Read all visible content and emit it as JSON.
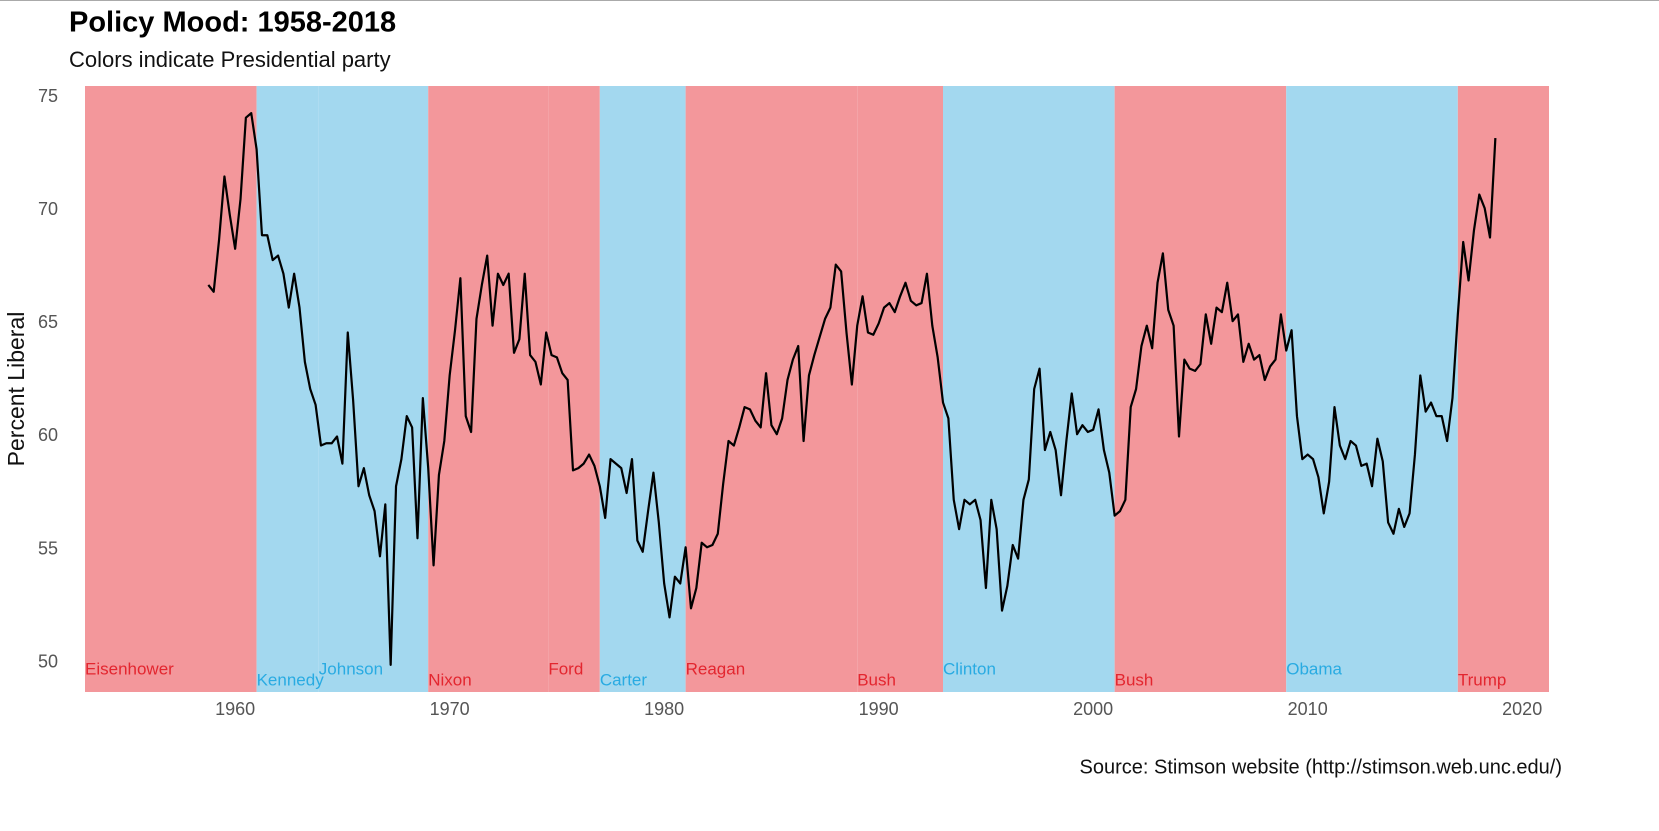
{
  "chart_data": {
    "type": "line",
    "title": "Policy Mood: 1958-2018",
    "subtitle": "Colors indicate Presidential party",
    "y_label": "Percent Liberal",
    "source": "Source: Stimson website (http://stimson.web.unc.edu/)",
    "color": "#000000",
    "xlim": [
      1953,
      2021.25
    ],
    "xticks": [
      1960,
      1970,
      1980,
      1990,
      2000,
      2010,
      2020
    ],
    "ylim": [
      48.7,
      75.5
    ],
    "yticks": [
      50,
      55,
      60,
      65,
      70,
      75
    ],
    "bands": [
      {
        "name": "Eisenhower",
        "start": 1953,
        "end": 1961,
        "color": "#f3979b",
        "label_color": "#e3262f"
      },
      {
        "name": "Kennedy",
        "start": 1961,
        "end": 1963.9,
        "color": "#a3d8ef",
        "label_color": "#29abe2"
      },
      {
        "name": "Johnson",
        "start": 1963.9,
        "end": 1969,
        "color": "#a3d8ef",
        "label_color": "#29abe2"
      },
      {
        "name": "Nixon",
        "start": 1969,
        "end": 1974.6,
        "color": "#f3979b",
        "label_color": "#e3262f"
      },
      {
        "name": "Ford",
        "start": 1974.6,
        "end": 1977,
        "color": "#f3979b",
        "label_color": "#e3262f"
      },
      {
        "name": "Carter",
        "start": 1977,
        "end": 1981,
        "color": "#a3d8ef",
        "label_color": "#29abe2"
      },
      {
        "name": "Reagan",
        "start": 1981,
        "end": 1989,
        "color": "#f3979b",
        "label_color": "#e3262f"
      },
      {
        "name": "Bush",
        "start": 1989,
        "end": 1993,
        "color": "#f3979b",
        "label_color": "#e3262f"
      },
      {
        "name": "Clinton",
        "start": 1993,
        "end": 2001,
        "color": "#a3d8ef",
        "label_color": "#29abe2"
      },
      {
        "name": "Bush",
        "start": 2001,
        "end": 2009,
        "color": "#f3979b",
        "label_color": "#e3262f"
      },
      {
        "name": "Obama",
        "start": 2009,
        "end": 2017,
        "color": "#a3d8ef",
        "label_color": "#29abe2"
      },
      {
        "name": "Trump",
        "start": 2017,
        "end": 2021.25,
        "color": "#f3979b",
        "label_color": "#e3262f"
      }
    ],
    "x": [
      1958.75,
      1959,
      1959.25,
      1959.5,
      1959.75,
      1960,
      1960.25,
      1960.5,
      1960.75,
      1961,
      1961.25,
      1961.5,
      1961.75,
      1962,
      1962.25,
      1962.5,
      1962.75,
      1963,
      1963.25,
      1963.5,
      1963.75,
      1964,
      1964.25,
      1964.5,
      1964.75,
      1965,
      1965.25,
      1965.5,
      1965.75,
      1966,
      1966.25,
      1966.5,
      1966.75,
      1967,
      1967.25,
      1967.5,
      1967.75,
      1968,
      1968.25,
      1968.5,
      1968.75,
      1969,
      1969.25,
      1969.5,
      1969.75,
      1970,
      1970.25,
      1970.5,
      1970.75,
      1971,
      1971.25,
      1971.5,
      1971.75,
      1972,
      1972.25,
      1972.5,
      1972.75,
      1973,
      1973.25,
      1973.5,
      1973.75,
      1974,
      1974.25,
      1974.5,
      1974.75,
      1975,
      1975.25,
      1975.5,
      1975.75,
      1976,
      1976.25,
      1976.5,
      1976.75,
      1977,
      1977.25,
      1977.5,
      1977.75,
      1978,
      1978.25,
      1978.5,
      1978.75,
      1979,
      1979.25,
      1979.5,
      1979.75,
      1980,
      1980.25,
      1980.5,
      1980.75,
      1981,
      1981.25,
      1981.5,
      1981.75,
      1982,
      1982.25,
      1982.5,
      1982.75,
      1983,
      1983.25,
      1983.5,
      1983.75,
      1984,
      1984.25,
      1984.5,
      1984.75,
      1985,
      1985.25,
      1985.5,
      1985.75,
      1986,
      1986.25,
      1986.5,
      1986.75,
      1987,
      1987.25,
      1987.5,
      1987.75,
      1988,
      1988.25,
      1988.5,
      1988.75,
      1989,
      1989.25,
      1989.5,
      1989.75,
      1990,
      1990.25,
      1990.5,
      1990.75,
      1991,
      1991.25,
      1991.5,
      1991.75,
      1992,
      1992.25,
      1992.5,
      1992.75,
      1993,
      1993.25,
      1993.5,
      1993.75,
      1994,
      1994.25,
      1994.5,
      1994.75,
      1995,
      1995.25,
      1995.5,
      1995.75,
      1996,
      1996.25,
      1996.5,
      1996.75,
      1997,
      1997.25,
      1997.5,
      1997.75,
      1998,
      1998.25,
      1998.5,
      1998.75,
      1999,
      1999.25,
      1999.5,
      1999.75,
      2000,
      2000.25,
      2000.5,
      2000.75,
      2001,
      2001.25,
      2001.5,
      2001.75,
      2002,
      2002.25,
      2002.5,
      2002.75,
      2003,
      2003.25,
      2003.5,
      2003.75,
      2004,
      2004.25,
      2004.5,
      2004.75,
      2005,
      2005.25,
      2005.5,
      2005.75,
      2006,
      2006.25,
      2006.5,
      2006.75,
      2007,
      2007.25,
      2007.5,
      2007.75,
      2008,
      2008.25,
      2008.5,
      2008.75,
      2009,
      2009.25,
      2009.5,
      2009.75,
      2010,
      2010.25,
      2010.5,
      2010.75,
      2011,
      2011.25,
      2011.5,
      2011.75,
      2012,
      2012.25,
      2012.5,
      2012.75,
      2013,
      2013.25,
      2013.5,
      2013.75,
      2014,
      2014.25,
      2014.5,
      2014.75,
      2015,
      2015.25,
      2015.5,
      2015.75,
      2016,
      2016.25,
      2016.5,
      2016.75,
      2017,
      2017.25,
      2017.5,
      2017.75,
      2018,
      2018.25,
      2018.5,
      2018.75
    ],
    "values": [
      66.7,
      66.4,
      68.7,
      71.5,
      69.8,
      68.3,
      70.5,
      74.1,
      74.3,
      72.7,
      68.9,
      68.9,
      67.8,
      68.0,
      67.2,
      65.7,
      67.2,
      65.7,
      63.3,
      62.1,
      61.4,
      59.6,
      59.7,
      59.7,
      60.0,
      58.8,
      64.6,
      61.6,
      57.8,
      58.6,
      57.4,
      56.7,
      54.7,
      57.0,
      49.9,
      57.8,
      59.0,
      60.9,
      60.4,
      55.5,
      61.7,
      58.6,
      54.3,
      58.3,
      59.8,
      62.7,
      64.7,
      67.0,
      60.9,
      60.2,
      65.2,
      66.7,
      68.0,
      64.9,
      67.2,
      66.7,
      67.2,
      63.7,
      64.3,
      67.2,
      63.6,
      63.3,
      62.3,
      64.6,
      63.6,
      63.5,
      62.8,
      62.5,
      58.5,
      58.6,
      58.8,
      59.2,
      58.7,
      57.8,
      56.4,
      59.0,
      58.8,
      58.6,
      57.5,
      59.0,
      55.4,
      54.9,
      56.7,
      58.4,
      56.2,
      53.5,
      52.0,
      53.8,
      53.5,
      55.1,
      52.4,
      53.3,
      55.3,
      55.1,
      55.2,
      55.7,
      57.9,
      59.8,
      59.6,
      60.4,
      61.3,
      61.2,
      60.7,
      60.4,
      62.8,
      60.5,
      60.1,
      60.8,
      62.5,
      63.4,
      64.0,
      59.8,
      62.7,
      63.6,
      64.4,
      65.2,
      65.7,
      67.6,
      67.3,
      64.6,
      62.3,
      64.9,
      66.2,
      64.6,
      64.5,
      65.0,
      65.7,
      65.9,
      65.5,
      66.2,
      66.8,
      66.0,
      65.8,
      65.9,
      67.2,
      64.9,
      63.5,
      61.5,
      60.8,
      57.2,
      55.9,
      57.2,
      57.0,
      57.2,
      56.3,
      53.3,
      57.2,
      55.9,
      52.3,
      53.4,
      55.2,
      54.6,
      57.2,
      58.1,
      62.1,
      63.0,
      59.4,
      60.2,
      59.4,
      57.4,
      59.8,
      61.9,
      60.1,
      60.5,
      60.2,
      60.3,
      61.2,
      59.4,
      58.4,
      56.5,
      56.7,
      57.2,
      61.3,
      62.1,
      64.0,
      64.9,
      63.9,
      66.8,
      68.1,
      65.6,
      64.9,
      60.0,
      63.4,
      63.0,
      62.9,
      63.2,
      65.4,
      64.1,
      65.7,
      65.5,
      66.8,
      65.1,
      65.4,
      63.3,
      64.1,
      63.4,
      63.6,
      62.5,
      63.1,
      63.4,
      65.4,
      63.8,
      64.7,
      60.9,
      59.0,
      59.2,
      59.0,
      58.2,
      56.6,
      58.0,
      61.3,
      59.6,
      59.0,
      59.8,
      59.6,
      58.7,
      58.8,
      57.8,
      59.9,
      58.9,
      56.2,
      55.7,
      56.8,
      56.0,
      56.6,
      59.2,
      62.7,
      61.1,
      61.5,
      60.9,
      60.9,
      59.8,
      61.7,
      65.4,
      68.6,
      66.9,
      69.1,
      70.7,
      70.1,
      68.8,
      73.2
    ]
  }
}
